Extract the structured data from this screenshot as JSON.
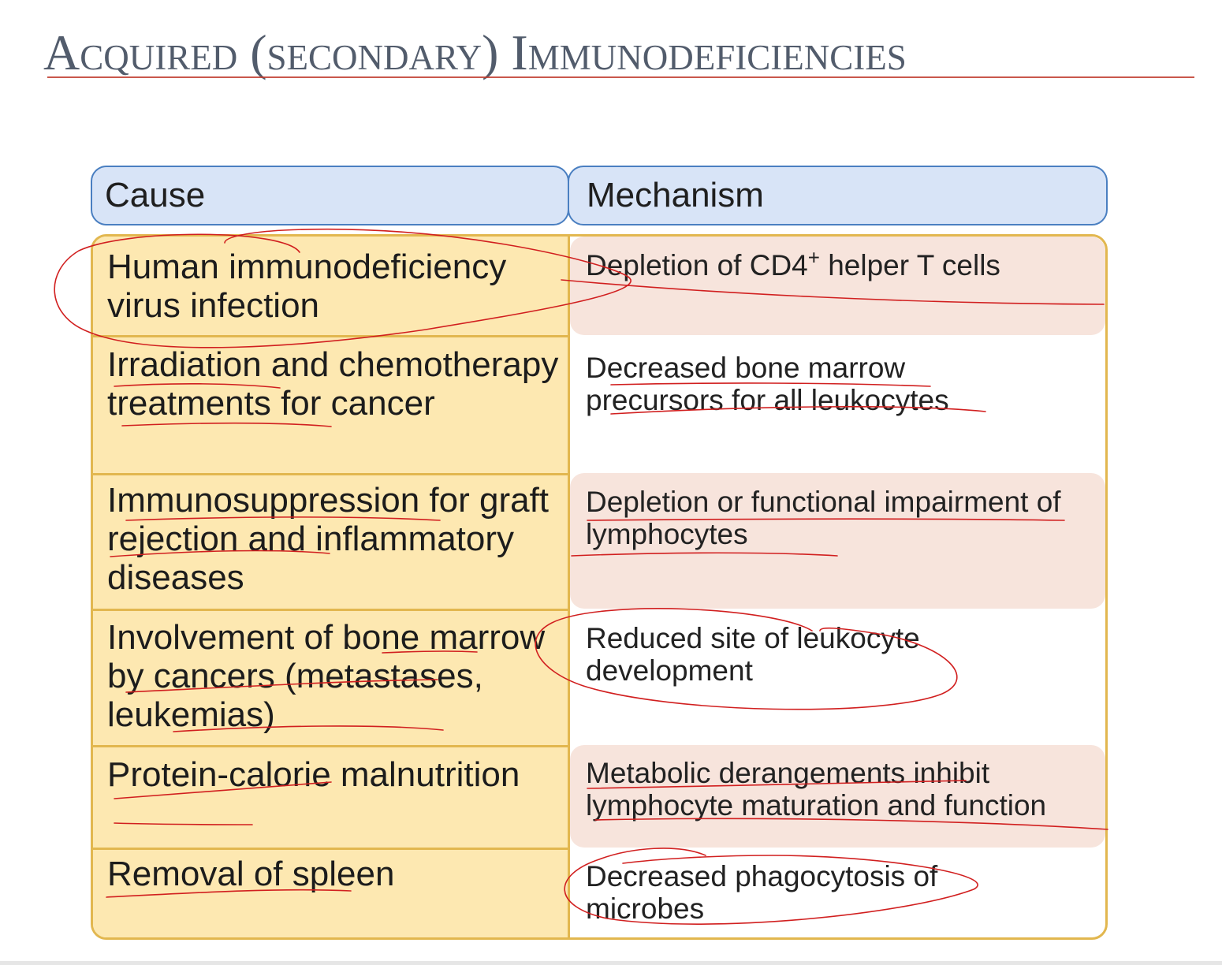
{
  "slide": {
    "title": "Acquired (secondary) Immunodeficiencies"
  },
  "table": {
    "headers": {
      "cause": "Cause",
      "mechanism": "Mechanism"
    },
    "rows": [
      {
        "cause": "Human immunodeficiency virus infection",
        "mechanism_main": "Depletion of CD4",
        "mechanism_sup": "+",
        "mechanism_rest": " helper T cells"
      },
      {
        "cause": "Irradiation and chemotherapy treatments for cancer",
        "mechanism": "Decreased bone marrow precursors for all leukocytes"
      },
      {
        "cause": "Immunosuppression for graft rejection and inflammatory diseases",
        "mechanism": "Depletion or functional impairment of lymphocytes"
      },
      {
        "cause": "Involvement of bone marrow by cancers (metastases, leukemias)",
        "mechanism": "Reduced site of leukocyte development"
      },
      {
        "cause": "Protein-calorie malnutrition",
        "mechanism": "Metabolic derangements inhibit lymphocyte maturation and function"
      },
      {
        "cause": "Removal of spleen",
        "mechanism": "Decreased phagocytosis of microbes"
      }
    ]
  },
  "colors": {
    "title": "#525c6c",
    "header_fill": "#d8e4f7",
    "header_border": "#4a7fc1",
    "cause_fill": "#fde8b1",
    "table_border": "#e2b74f",
    "mechanism_band": "#f7e4dc",
    "annotation_ink": "#d11f1f"
  }
}
